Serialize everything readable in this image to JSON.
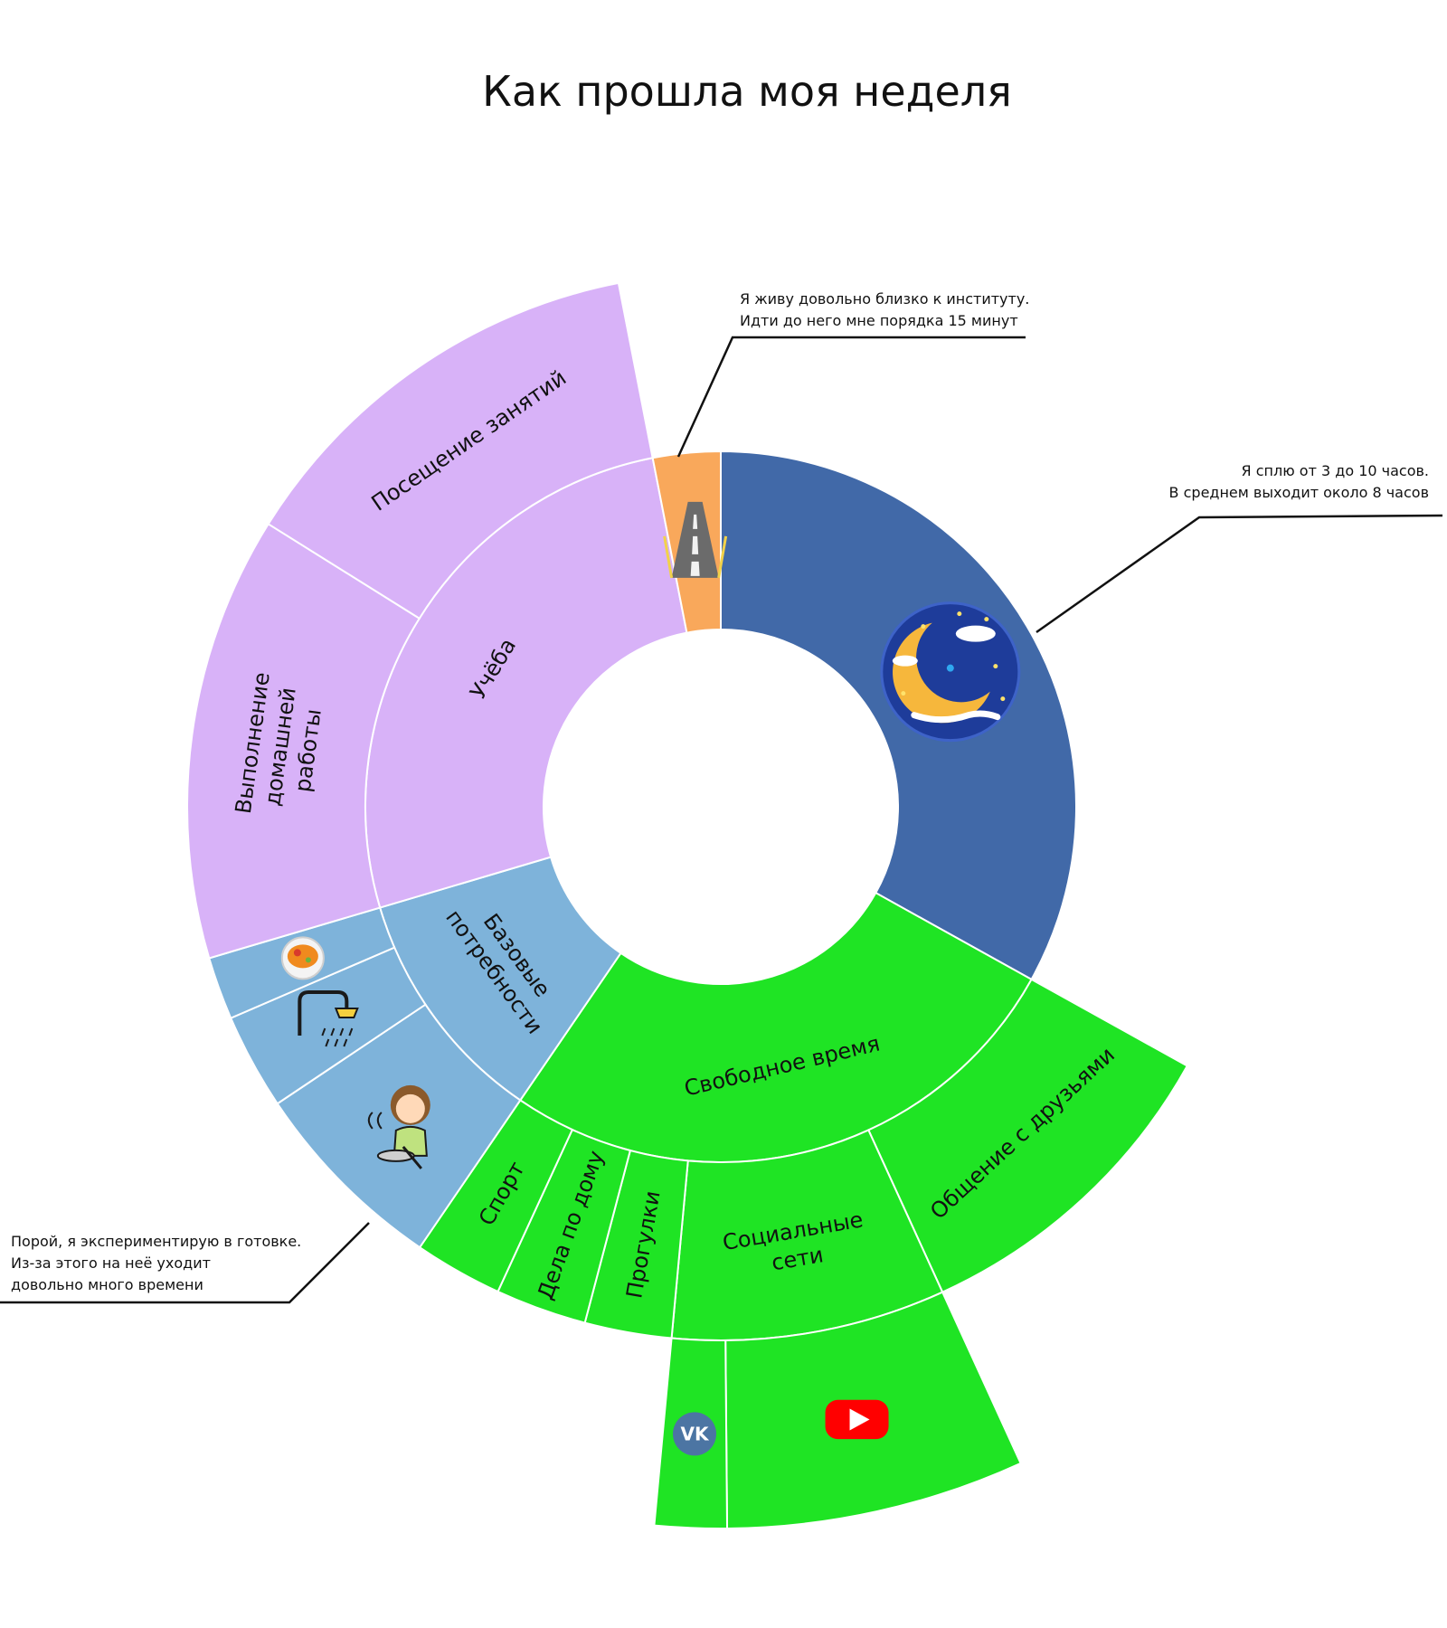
{
  "chart_data": {
    "type": "sunburst",
    "title": "Как прошла моя неделя",
    "unit": "fraction of the week (estimated from arc angles)",
    "rings": [
      {
        "level": 1,
        "segments": [
          {
            "label": "",
            "icon": "sleep-moon-icon",
            "value": 0.3307,
            "color": "#4169A8"
          },
          {
            "label": "Свободное время",
            "value": 0.2647,
            "color": "#1FE424"
          },
          {
            "label": "Базовые потребности",
            "value": 0.1088,
            "color": "#7EB3DA"
          },
          {
            "label": "Учёба",
            "value": 0.2651,
            "color": "#D8B2F8"
          },
          {
            "label": "",
            "icon": "road-icon",
            "value": 0.0307,
            "color": "#F9A85B"
          }
        ]
      },
      {
        "level": 2,
        "segments": [
          {
            "parent": "Свободное время",
            "label": "Общение с друзьями",
            "value": 0.1011,
            "color": "#1FE424"
          },
          {
            "parent": "Свободное время",
            "label": "Социальные сети",
            "value": 0.0829,
            "color": "#1FE424"
          },
          {
            "parent": "Свободное время",
            "label": "Прогулки",
            "value": 0.0263,
            "color": "#1FE424"
          },
          {
            "parent": "Свободное время",
            "label": "Дела по дому",
            "value": 0.0276,
            "color": "#1FE424"
          },
          {
            "parent": "Свободное время",
            "label": "Спорт",
            "value": 0.0268,
            "color": "#1FE424"
          },
          {
            "parent": "Базовые потребности",
            "label": "",
            "icon": "cooking-girl-icon",
            "value": 0.0607,
            "color": "#7EB3DA"
          },
          {
            "parent": "Базовые потребности",
            "label": "",
            "icon": "shower-icon",
            "value": 0.0291,
            "color": "#7EB3DA"
          },
          {
            "parent": "Базовые потребности",
            "label": "",
            "icon": "food-plate-icon",
            "value": 0.019,
            "color": "#7EB3DA"
          },
          {
            "parent": "Учёба",
            "label": "Выполнение домашней работы",
            "value": 0.1347,
            "color": "#D8B2F8"
          },
          {
            "parent": "Учёба",
            "label": "Посещение занятий",
            "value": 0.1304,
            "color": "#D8B2F8"
          }
        ]
      },
      {
        "level": 3,
        "segments": [
          {
            "parent": "Социальные сети",
            "label": "",
            "icon": "youtube-icon",
            "value": 0.0668,
            "color": "#1FE424"
          },
          {
            "parent": "Социальные сети",
            "label": "",
            "icon": "vk-icon",
            "value": 0.0161,
            "color": "#1FE424"
          }
        ]
      }
    ],
    "annotations": [
      {
        "lines": [
          "Я живу довольно близко к институту.",
          "Идти до него мне порядка 15 минут"
        ],
        "target": "road-icon"
      },
      {
        "lines": [
          "Я сплю от 3 до 10 часов.",
          "В среднем выходит около 8 часов"
        ],
        "target": "sleep-moon-icon"
      },
      {
        "lines": [
          "Порой, я экспериментирую в готовке.",
          "Из-за этого на неё уходит",
          "довольно много времени"
        ],
        "target": "cooking-girl-icon"
      }
    ]
  }
}
